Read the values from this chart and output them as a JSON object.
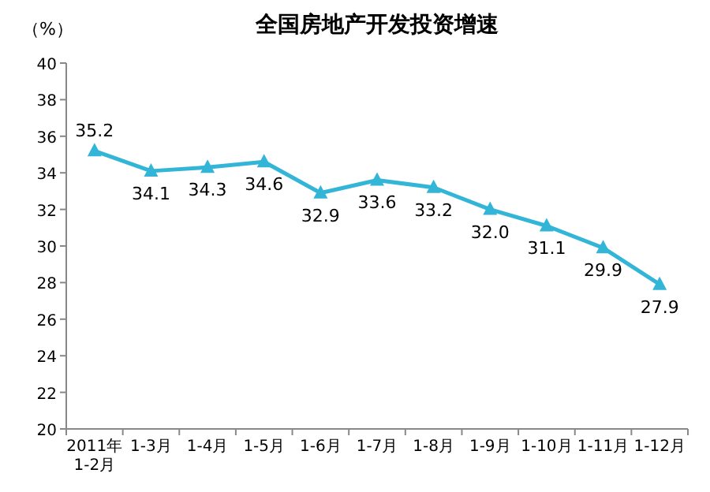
{
  "chart_data": {
    "type": "line",
    "title": "全国房地产开发投资增速",
    "ylabel": "（%）",
    "categories": [
      "2011年\n1-2月",
      "1-3月",
      "1-4月",
      "1-5月",
      "1-6月",
      "1-7月",
      "1-8月",
      "1-9月",
      "1-10月",
      "1-11月",
      "1-12月"
    ],
    "series": [
      {
        "color": "#33b5d8",
        "values": [
          35.2,
          34.1,
          34.3,
          34.6,
          32.9,
          33.6,
          33.2,
          32.0,
          31.1,
          29.9,
          27.9
        ]
      }
    ],
    "ylim": [
      20,
      40
    ],
    "yticks": [
      20,
      22,
      24,
      26,
      28,
      30,
      32,
      34,
      36,
      38,
      40
    ],
    "value_labels": [
      "35.2",
      "34.1",
      "34.3",
      "34.6",
      "32.9",
      "33.6",
      "33.2",
      "32.0",
      "31.1",
      "29.9",
      "27.9"
    ],
    "marker": "triangle",
    "grid": false
  }
}
